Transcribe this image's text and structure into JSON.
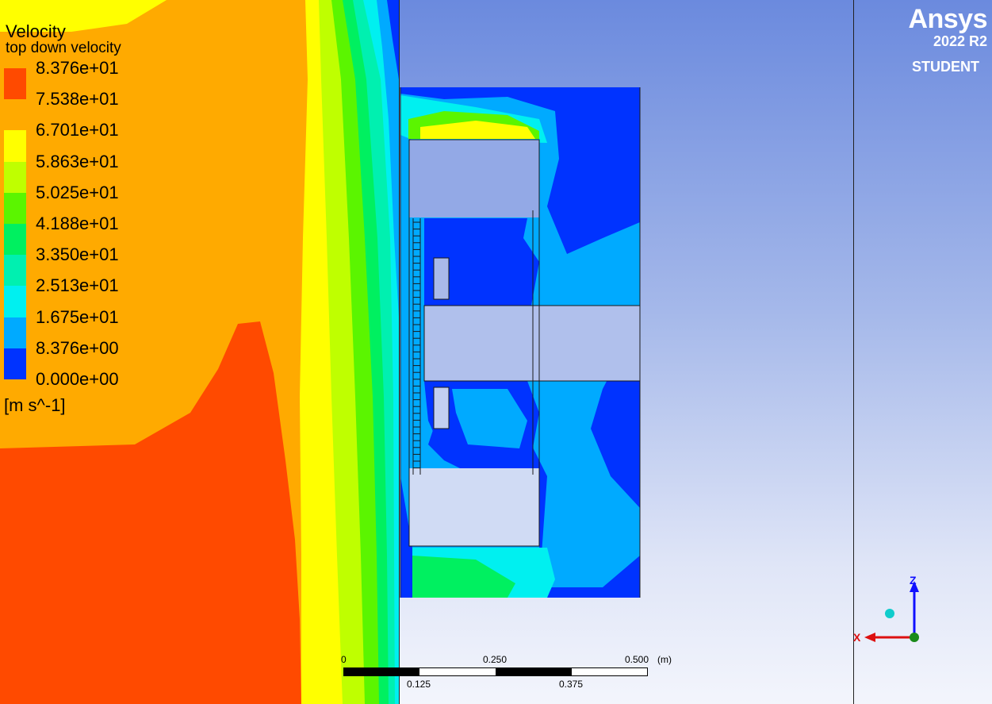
{
  "legend": {
    "title": "Velocity",
    "subtitle": "top down velocity",
    "unit": "[m s^-1]",
    "ticks": [
      "8.376e+01",
      "7.538e+01",
      "6.701e+01",
      "5.863e+01",
      "5.025e+01",
      "4.188e+01",
      "3.350e+01",
      "2.513e+01",
      "1.675e+01",
      "8.376e+00",
      "0.000e+00"
    ],
    "colors": [
      "#ff4a00",
      "#ffaa00",
      "#ffff00",
      "#bfff00",
      "#5bf500",
      "#00f060",
      "#00f0b0",
      "#00f0f0",
      "#00aaff",
      "#0033ff"
    ]
  },
  "brand": {
    "name": "Ansys",
    "version": "2022 R2",
    "edition": "STUDENT"
  },
  "scale_bar": {
    "top_labels": [
      "0",
      "0.250",
      "0.500"
    ],
    "unit": "(m)",
    "bottom_labels": [
      "0.125",
      "0.375"
    ]
  },
  "axes": {
    "z_label": "Z",
    "x_label": "X",
    "colors": {
      "z": "#1010ff",
      "x": "#dd1010",
      "origin": "#1a8a1a",
      "ghost": "#10cccc"
    }
  }
}
